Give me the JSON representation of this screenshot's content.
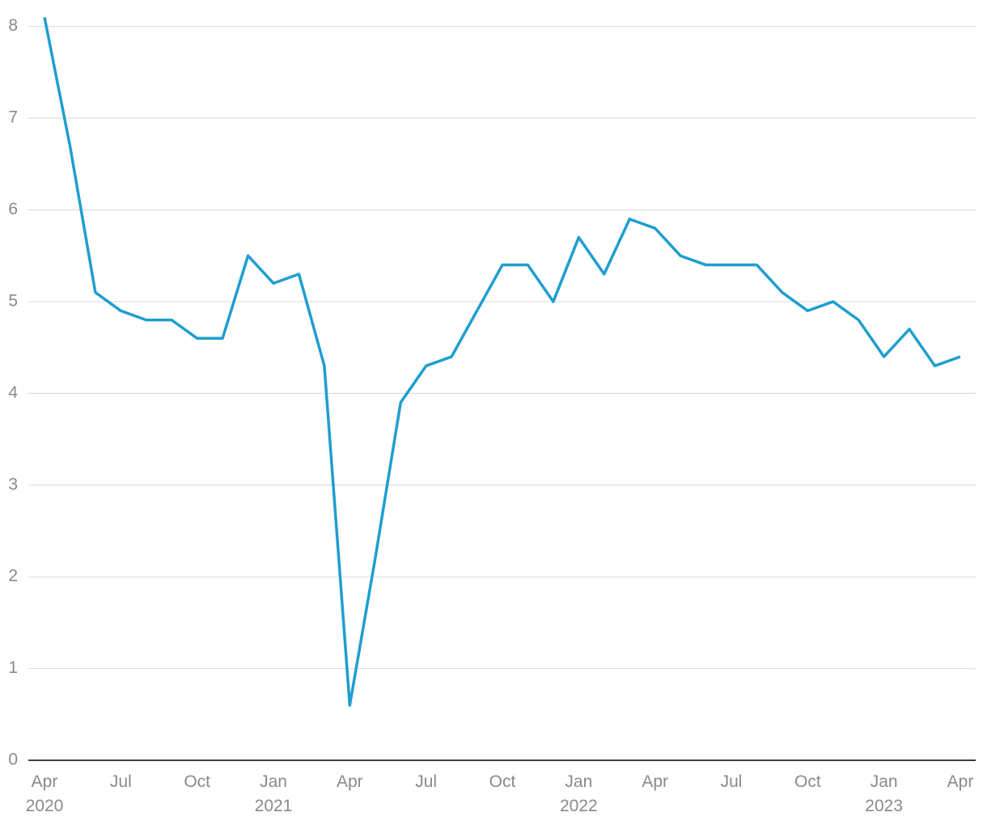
{
  "chart_data": {
    "type": "line",
    "categories": [
      "Apr 2020",
      null,
      null,
      "Jul",
      null,
      null,
      "Oct",
      null,
      null,
      "Jan 2021",
      null,
      null,
      "Apr",
      null,
      null,
      "Jul",
      null,
      null,
      "Oct",
      null,
      null,
      "Jan 2022",
      null,
      null,
      "Apr",
      null,
      null,
      "Jul",
      null,
      null,
      "Oct",
      null,
      null,
      "Jan 2023",
      null,
      null,
      "Apr"
    ],
    "series": [
      {
        "color": "#1f9ecf",
        "values": [
          8.1,
          6.7,
          5.1,
          4.9,
          4.8,
          4.8,
          4.6,
          4.6,
          5.5,
          5.2,
          5.3,
          4.3,
          0.6,
          2.2,
          3.9,
          4.3,
          4.4,
          4.9,
          5.4,
          5.4,
          5.0,
          5.7,
          5.3,
          5.9,
          5.8,
          5.5,
          5.4,
          5.4,
          5.4,
          5.1,
          4.9,
          5.0,
          4.8,
          4.4,
          4.7,
          4.3,
          4.4
        ]
      }
    ],
    "ylim": [
      0,
      8.2
    ],
    "yticks": [
      0,
      1,
      2,
      3,
      4,
      5,
      6,
      7,
      8
    ],
    "grid": true
  }
}
